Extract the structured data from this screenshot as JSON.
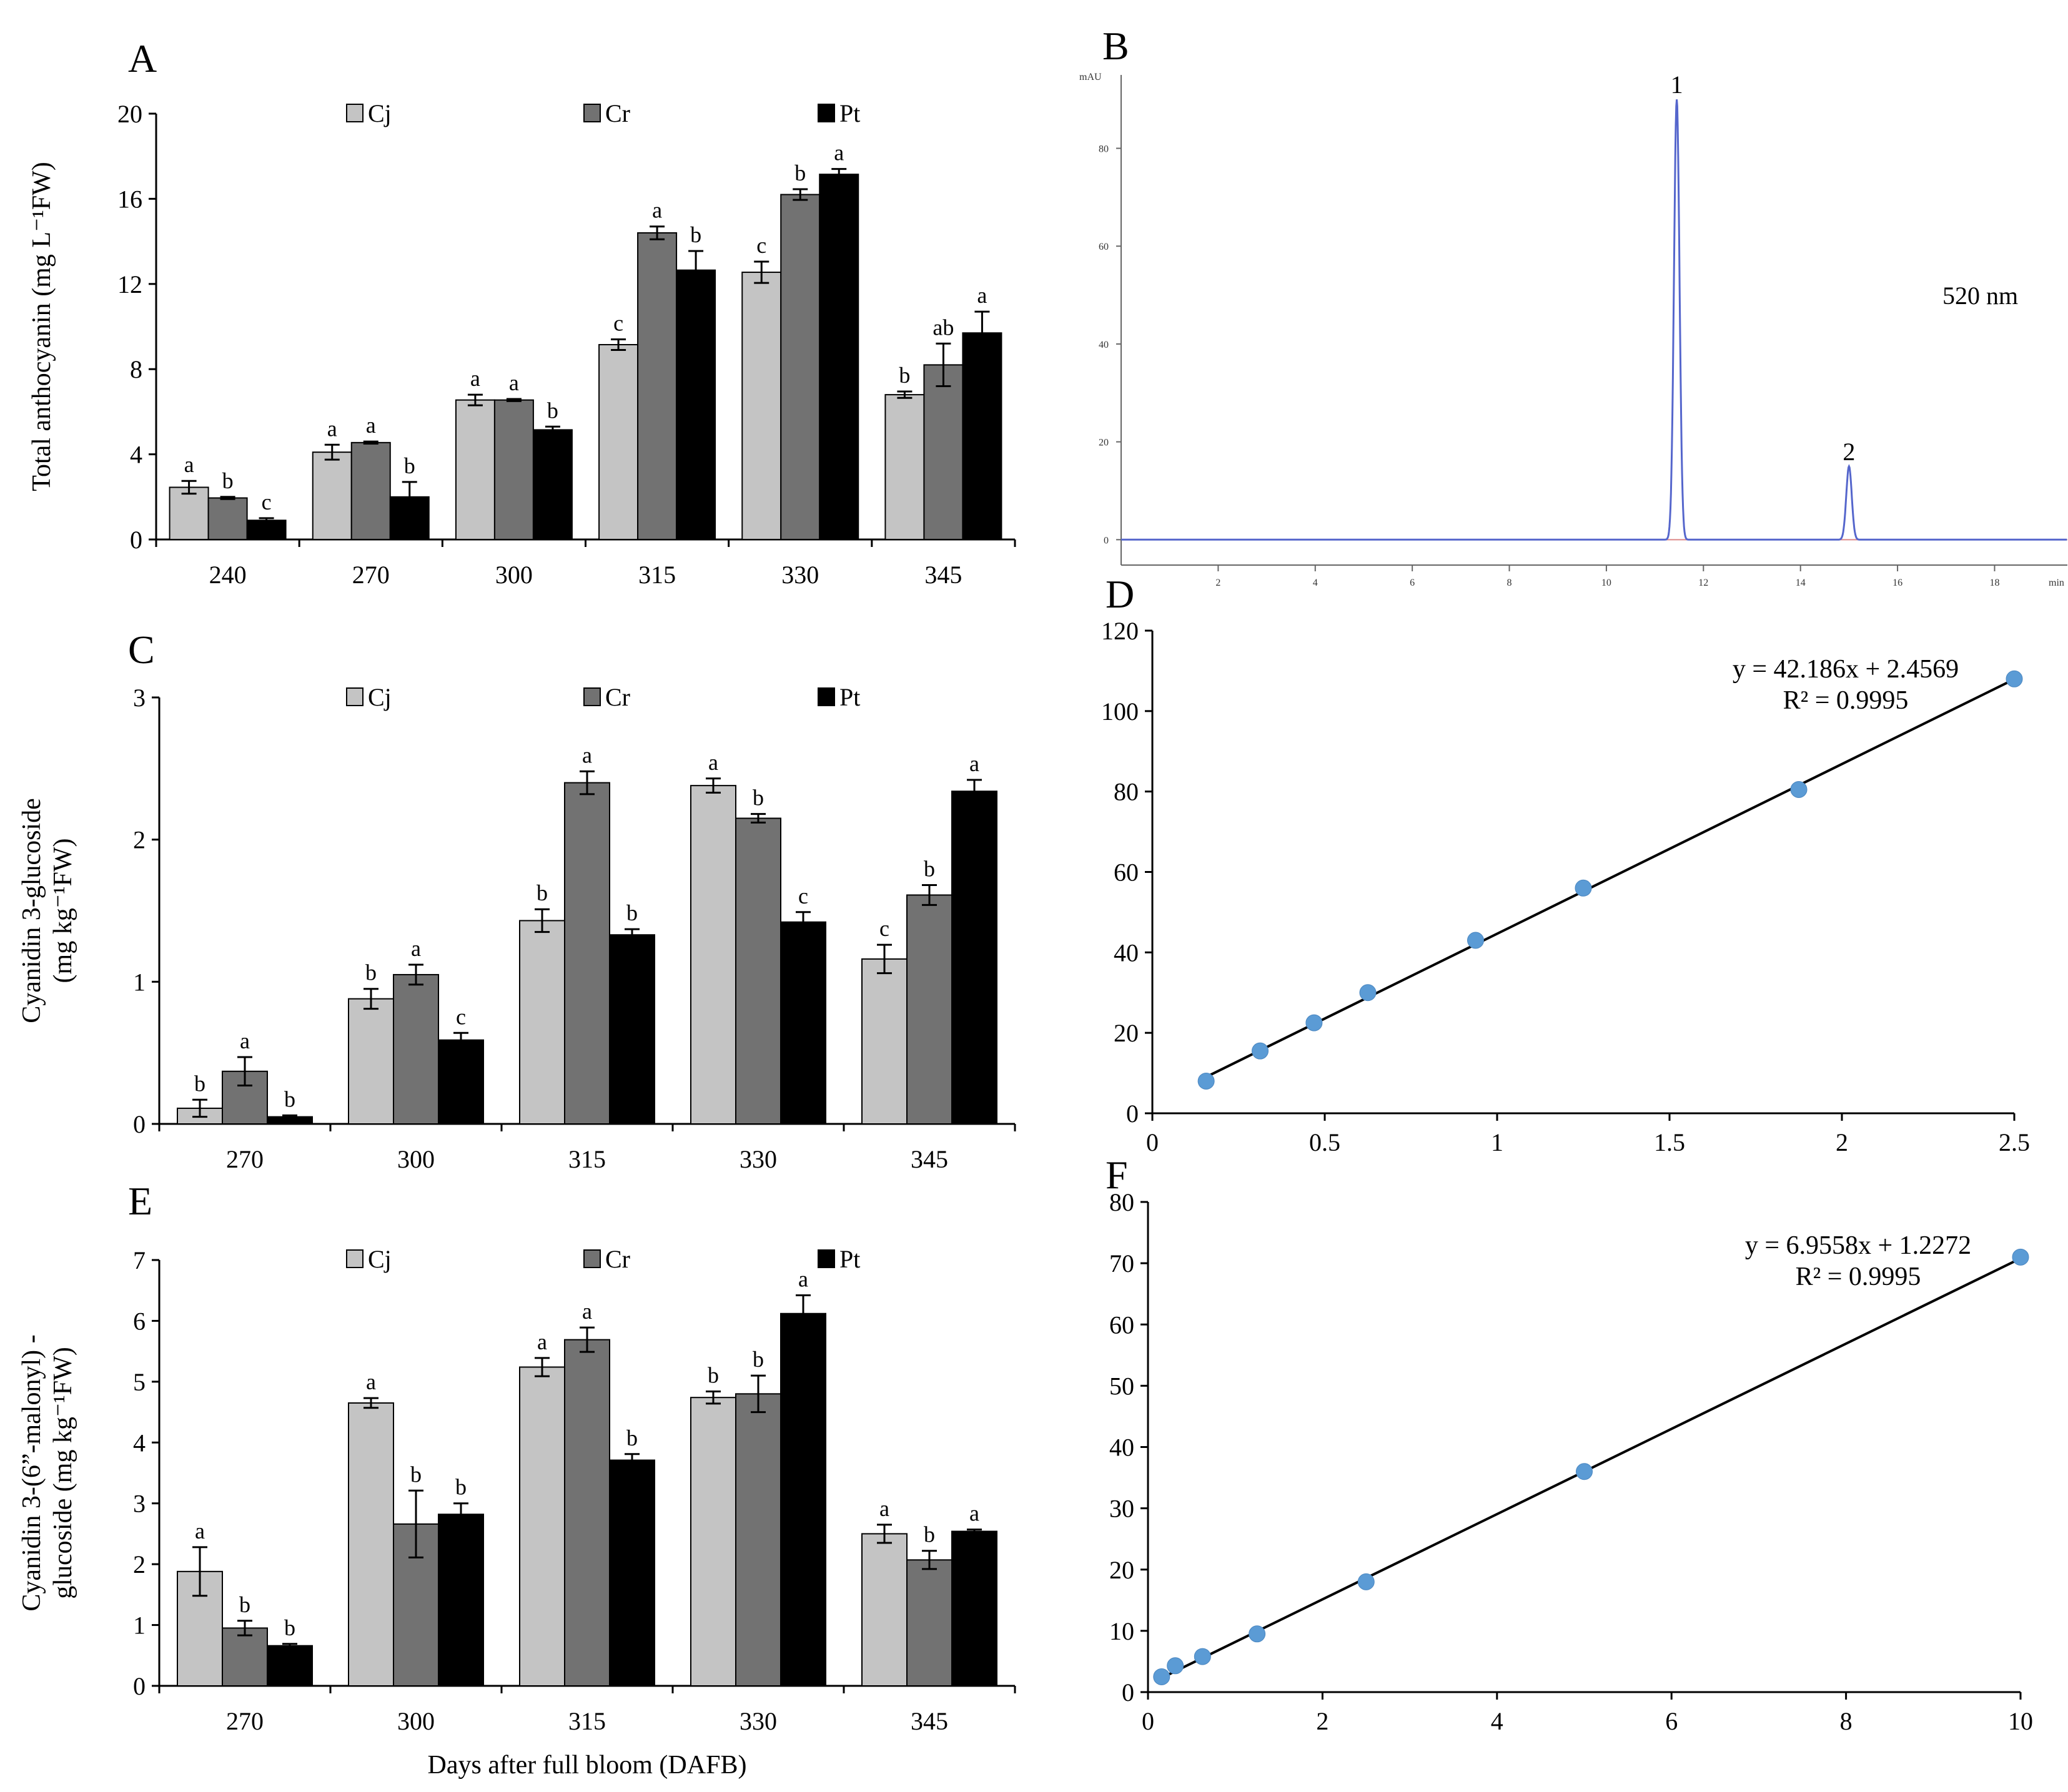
{
  "chart_data": [
    {
      "panel": "A",
      "type": "bar",
      "ylabel": "Total anthocyanin (mg L⁻¹FW)",
      "xlabel": "",
      "ylim": [
        0,
        20
      ],
      "yticks": [
        "0",
        "4",
        "8",
        "12",
        "16",
        "20"
      ],
      "categories": [
        "240",
        "270",
        "300",
        "315",
        "330",
        "345"
      ],
      "legend": [
        "Cj",
        "Cr",
        "Pt"
      ],
      "colors": [
        "#c4c4c4",
        "#727272",
        "#000000"
      ],
      "series": [
        {
          "name": "Cj",
          "values": [
            2.45,
            4.1,
            6.55,
            9.15,
            12.55,
            6.8
          ],
          "errors": [
            0.3,
            0.35,
            0.25,
            0.25,
            0.5,
            0.15
          ],
          "letters": [
            "a",
            "a",
            "a",
            "c",
            "c",
            "b"
          ]
        },
        {
          "name": "Cr",
          "values": [
            1.95,
            4.55,
            6.55,
            14.4,
            16.2,
            8.2
          ],
          "errors": [
            0.05,
            0.05,
            0.05,
            0.3,
            0.25,
            1.0
          ],
          "letters": [
            "b",
            "a",
            "a",
            "a",
            "b",
            "ab"
          ]
        },
        {
          "name": "Pt",
          "values": [
            0.9,
            2.0,
            5.15,
            12.65,
            17.15,
            9.7
          ],
          "errors": [
            0.1,
            0.7,
            0.15,
            0.9,
            0.25,
            1.0
          ],
          "letters": [
            "c",
            "b",
            "b",
            "b",
            "a",
            "a"
          ]
        }
      ]
    },
    {
      "panel": "B",
      "type": "line",
      "title": "520 nm",
      "yunit": "mAU",
      "xunit": "min",
      "xlim": [
        0,
        19.5
      ],
      "ylim": [
        -2,
        95
      ],
      "xticks": [
        "2",
        "4",
        "6",
        "8",
        "10",
        "12",
        "14",
        "16",
        "18"
      ],
      "yticks": [
        "0",
        "20",
        "40",
        "60",
        "80"
      ],
      "peaks": [
        {
          "label": "1",
          "time": 11.45,
          "height": 90
        },
        {
          "label": "2",
          "time": 15.0,
          "height": 15
        }
      ]
    },
    {
      "panel": "C",
      "type": "bar",
      "ylabel_line1": "Cyanidin 3-glucoside",
      "ylabel_line2": "(mg kg⁻¹FW)",
      "ylim": [
        0,
        3
      ],
      "yticks": [
        "0",
        "1",
        "2",
        "3"
      ],
      "categories": [
        "270",
        "300",
        "315",
        "330",
        "345"
      ],
      "legend": [
        "Cj",
        "Cr",
        "Pt"
      ],
      "colors": [
        "#c4c4c4",
        "#727272",
        "#000000"
      ],
      "series": [
        {
          "name": "Cj",
          "values": [
            0.11,
            0.88,
            1.43,
            2.38,
            1.16
          ],
          "errors": [
            0.06,
            0.07,
            0.08,
            0.05,
            0.1
          ],
          "letters": [
            "b",
            "b",
            "b",
            "a",
            "c"
          ]
        },
        {
          "name": "Cr",
          "values": [
            0.37,
            1.05,
            2.4,
            2.15,
            1.61
          ],
          "errors": [
            0.1,
            0.07,
            0.08,
            0.03,
            0.07
          ],
          "letters": [
            "a",
            "a",
            "a",
            "b",
            "b"
          ]
        },
        {
          "name": "Pt",
          "values": [
            0.05,
            0.59,
            1.33,
            1.42,
            2.34
          ],
          "errors": [
            0.01,
            0.05,
            0.04,
            0.07,
            0.08
          ],
          "letters": [
            "b",
            "c",
            "b",
            "c",
            "a"
          ]
        }
      ]
    },
    {
      "panel": "D",
      "type": "scatter",
      "xlim": [
        0,
        2.5
      ],
      "ylim": [
        0,
        120
      ],
      "xticks": [
        "0",
        "0.5",
        "1",
        "1.5",
        "2",
        "2.5"
      ],
      "yticks": [
        "0",
        "20",
        "40",
        "60",
        "80",
        "100",
        "120"
      ],
      "x": [
        0.156,
        0.3125,
        0.469,
        0.625,
        0.9375,
        1.25,
        1.875,
        2.5
      ],
      "y": [
        8,
        15.5,
        22.5,
        30,
        43,
        56,
        80.5,
        108
      ],
      "fit": {
        "slope": 42.186,
        "intercept": 2.4569
      },
      "equation": "y = 42.186x + 2.4569",
      "r2": "R² = 0.9995"
    },
    {
      "panel": "E",
      "type": "bar",
      "ylabel_line1": "Cyanidin 3-(6”-malonyl) -",
      "ylabel_line2": "glucoside (mg kg⁻¹FW)",
      "xlabel": "Days after full bloom (DAFB)",
      "ylim": [
        0,
        7
      ],
      "yticks": [
        "0",
        "1",
        "2",
        "3",
        "4",
        "5",
        "6",
        "7"
      ],
      "categories": [
        "270",
        "300",
        "315",
        "330",
        "345"
      ],
      "legend": [
        "Cj",
        "Cr",
        "Pt"
      ],
      "colors": [
        "#c4c4c4",
        "#727272",
        "#000000"
      ],
      "series": [
        {
          "name": "Cj",
          "values": [
            1.88,
            4.65,
            5.24,
            4.74,
            2.5
          ],
          "errors": [
            0.4,
            0.08,
            0.15,
            0.1,
            0.15
          ],
          "letters": [
            "a",
            "a",
            "a",
            "b",
            "a"
          ]
        },
        {
          "name": "Cr",
          "values": [
            0.95,
            2.66,
            5.69,
            4.8,
            2.07
          ],
          "errors": [
            0.12,
            0.55,
            0.2,
            0.3,
            0.15
          ],
          "letters": [
            "b",
            "b",
            "a",
            "b",
            "b"
          ]
        },
        {
          "name": "Pt",
          "values": [
            0.66,
            2.82,
            3.71,
            6.12,
            2.54
          ],
          "errors": [
            0.03,
            0.18,
            0.1,
            0.3,
            0.03
          ],
          "letters": [
            "b",
            "b",
            "b",
            "a",
            "a"
          ]
        }
      ]
    },
    {
      "panel": "F",
      "type": "scatter",
      "xlim": [
        0,
        10
      ],
      "ylim": [
        0,
        80
      ],
      "xticks": [
        "0",
        "2",
        "4",
        "6",
        "8",
        "10"
      ],
      "yticks": [
        "0",
        "10",
        "20",
        "30",
        "40",
        "50",
        "60",
        "70",
        "80"
      ],
      "x": [
        0.156,
        0.3125,
        0.625,
        1.25,
        2.5,
        5,
        10
      ],
      "y": [
        2.5,
        4.3,
        5.8,
        9.5,
        18,
        36,
        71
      ],
      "fit": {
        "slope": 6.9558,
        "intercept": 1.2272
      },
      "equation": "y = 6.9558x + 1.2272",
      "r2": "R² = 0.9995"
    }
  ]
}
